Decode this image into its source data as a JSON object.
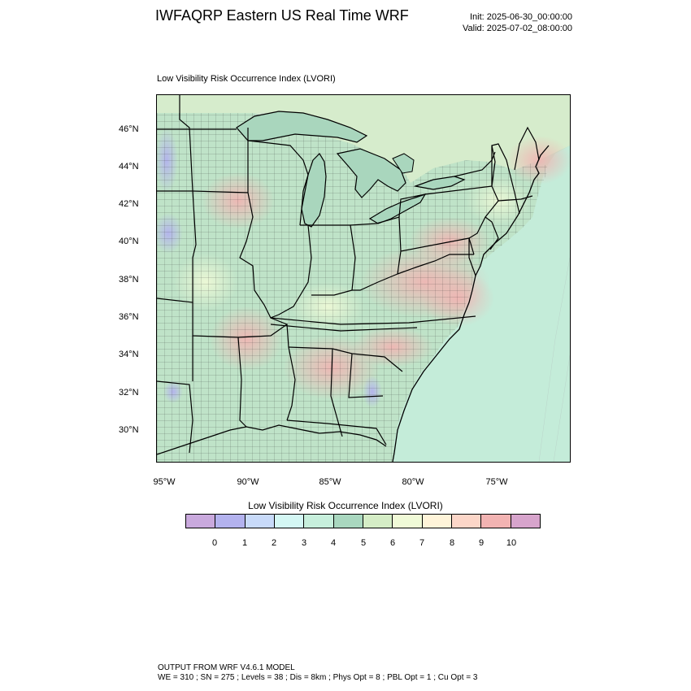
{
  "header": {
    "title": "IWFAQRP Eastern US Real Time WRF",
    "init": "Init: 2025-06-30_00:00:00",
    "valid": "Valid: 2025-07-02_08:00:00"
  },
  "map": {
    "subtitle": "Low Visibility Risk Occurrence Index   (LVORI)",
    "lat_labels": [
      "46°N",
      "44°N",
      "42°N",
      "40°N",
      "38°N",
      "36°N",
      "34°N",
      "32°N",
      "30°N"
    ],
    "lon_labels": [
      "95°W",
      "90°W",
      "85°W",
      "80°W",
      "75°W"
    ],
    "colors": {
      "ocean": "#c4ecd9",
      "land": "#bfe3c8",
      "lake": "#a9d6bd",
      "high_risk": "#f2b7b5",
      "low_risk": "#b9b6ef",
      "border": "#000000"
    }
  },
  "colorbar": {
    "title": "Low Visibility Risk Occurrence Index  (LVORI)",
    "colors": [
      "#c9a9dd",
      "#b3b2ee",
      "#c8daf9",
      "#d4f7f4",
      "#c7efdc",
      "#a9d7bf",
      "#d5edc6",
      "#f0fad7",
      "#fff4d9",
      "#fcd6c8",
      "#f2b3b2",
      "#d7a4cc"
    ],
    "ticks": [
      "0",
      "1",
      "2",
      "3",
      "4",
      "5",
      "6",
      "7",
      "8",
      "9",
      "10"
    ]
  },
  "footer": {
    "line1": "OUTPUT FROM WRF V4.6.1 MODEL",
    "line2": "WE = 310 ; SN = 275 ; Levels = 38 ; Dis = 8km ; Phys Opt = 8 ; PBL Opt = 1 ; Cu Opt = 3"
  }
}
